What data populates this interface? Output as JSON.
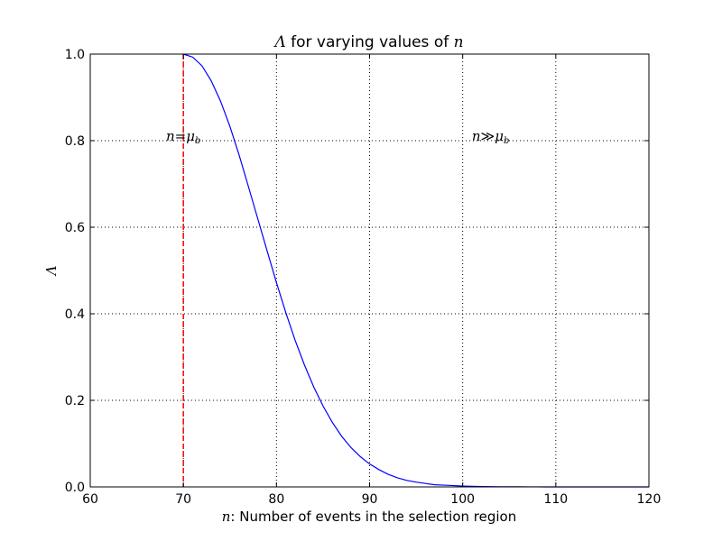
{
  "chart_data": {
    "type": "line",
    "title_prefix": "Λ",
    "title_middle": " for varying values of ",
    "title_var": "n",
    "xlabel_var": "n",
    "xlabel_rest": ": Number of events in the selection region",
    "ylabel": "Λ",
    "xlim": [
      60,
      120
    ],
    "ylim": [
      0.0,
      1.0
    ],
    "x_ticks": [
      60,
      70,
      80,
      90,
      100,
      110,
      120
    ],
    "x_tick_labels": [
      "60",
      "70",
      "80",
      "90",
      "100",
      "110",
      "120"
    ],
    "y_ticks": [
      0.0,
      0.2,
      0.4,
      0.6,
      0.8,
      1.0
    ],
    "y_tick_labels": [
      "0.0",
      "0.2",
      "0.4",
      "0.6",
      "0.8",
      "1.0"
    ],
    "grid": true,
    "series": [
      {
        "color": "#0000ff",
        "x": [
          70,
          71,
          72,
          73,
          74,
          75,
          76,
          77,
          78,
          79,
          80,
          81,
          82,
          83,
          84,
          85,
          86,
          87,
          88,
          89,
          90,
          91,
          92,
          93,
          94,
          95,
          96,
          97,
          98,
          99,
          100,
          101,
          102,
          103,
          104,
          105,
          106,
          107,
          108,
          109,
          110,
          112,
          115,
          120
        ],
        "y": [
          1.0,
          0.993,
          0.973,
          0.938,
          0.891,
          0.833,
          0.766,
          0.693,
          0.619,
          0.545,
          0.472,
          0.403,
          0.339,
          0.282,
          0.231,
          0.187,
          0.149,
          0.117,
          0.091,
          0.07,
          0.053,
          0.04,
          0.029,
          0.021,
          0.015,
          0.011,
          0.008,
          0.005,
          0.004,
          0.003,
          0.002,
          0.0013,
          0.0009,
          0.0006,
          0.0004,
          0.0003,
          0.0002,
          0.0001,
          0.0001,
          0.0,
          0.0,
          0.0,
          0.0,
          0.0
        ]
      }
    ],
    "vline": {
      "x": 70,
      "color": "#ff0000",
      "style": "dashed"
    },
    "annotations": [
      {
        "x": 70,
        "y": 0.8,
        "left": "n",
        "op": "=",
        "right": "μ",
        "sub": "b"
      },
      {
        "x": 103,
        "y": 0.8,
        "left": "n",
        "op": "≫",
        "right": "μ",
        "sub": "b"
      }
    ]
  }
}
